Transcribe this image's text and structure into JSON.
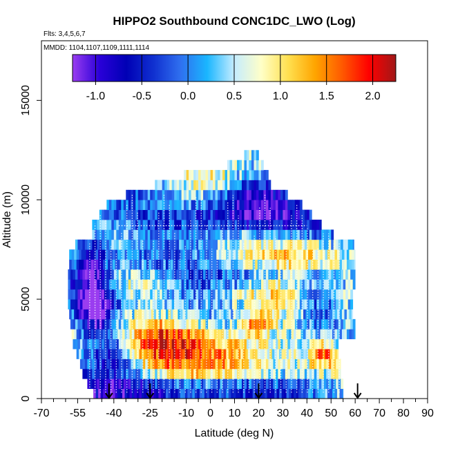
{
  "chart_data": {
    "type": "heatmap",
    "title": "HIPPO2 Southbound CONC1DC_LWO (Log)",
    "subtitle_flights": "Flts: 3,4,5,6,7",
    "subtitle_dates": "MMDD: 1104,1107,1109,1111,1114",
    "xlabel": "Latitude (deg N)",
    "ylabel": "Altitude (m)",
    "xlim": [
      -70,
      90
    ],
    "ylim": [
      0,
      18000
    ],
    "x_ticks": [
      -70,
      -55,
      -40,
      -25,
      -10,
      0,
      10,
      20,
      30,
      40,
      50,
      60,
      70,
      80,
      90
    ],
    "x_tick_labels": [
      "-70",
      "-55",
      "-40",
      "-25",
      "-10",
      "0",
      "10",
      "20",
      "30",
      "40",
      "50",
      "60",
      "70",
      "80",
      "90"
    ],
    "x_minor_ticks": [
      -65,
      -60,
      -50,
      -45,
      -35,
      -30,
      -20,
      -15,
      -5,
      5,
      15,
      25,
      35,
      45,
      55,
      65,
      75,
      85
    ],
    "y_ticks": [
      0,
      5000,
      10000,
      15000
    ],
    "y_tick_labels": [
      "0",
      "5000",
      "10000",
      "15000"
    ],
    "colorbar": {
      "min": -1.25,
      "max": 2.25,
      "ticks": [
        -1.0,
        -0.5,
        0.0,
        0.5,
        1.0,
        1.5,
        2.0
      ],
      "tick_labels": [
        "-1.0",
        "-0.5",
        "0.0",
        "0.5",
        "1.0",
        "1.5",
        "2.0"
      ],
      "colors": [
        "#9a3df0",
        "#2a00d8",
        "#0000b5",
        "#1030d0",
        "#2f6fef",
        "#1ab6ff",
        "#c4ecff",
        "#ffffc8",
        "#ffe050",
        "#ffa500",
        "#ff5a00",
        "#ff0000",
        "#a01818"
      ]
    },
    "arrow_latitudes": [
      -42,
      -25,
      20,
      61
    ],
    "dense_track_region_lat": [
      -50,
      55
    ],
    "data_envelope": [
      {
        "alt": 500,
        "lat_min": -48.5,
        "lat_max": 55
      },
      {
        "alt": 1000,
        "lat_min": -51,
        "lat_max": 55
      },
      {
        "alt": 1500,
        "lat_min": -53,
        "lat_max": 54
      },
      {
        "alt": 2000,
        "lat_min": -54,
        "lat_max": 54
      },
      {
        "alt": 2500,
        "lat_min": -55.5,
        "lat_max": 53
      },
      {
        "alt": 3000,
        "lat_min": -57,
        "lat_max": 53
      },
      {
        "alt": 3500,
        "lat_min": -57.5,
        "lat_max": 60
      },
      {
        "alt": 4000,
        "lat_min": -58,
        "lat_max": 60
      },
      {
        "alt": 4500,
        "lat_min": -58.5,
        "lat_max": 59
      },
      {
        "alt": 5000,
        "lat_min": -59,
        "lat_max": 59
      },
      {
        "alt": 5500,
        "lat_min": -59,
        "lat_max": 59
      },
      {
        "alt": 6000,
        "lat_min": -59,
        "lat_max": 60
      },
      {
        "alt": 6500,
        "lat_min": -59,
        "lat_max": 60
      },
      {
        "alt": 7000,
        "lat_min": -58.5,
        "lat_max": 60
      },
      {
        "alt": 7500,
        "lat_min": -58.5,
        "lat_max": 60
      },
      {
        "alt": 8000,
        "lat_min": -56,
        "lat_max": 59.5
      },
      {
        "alt": 8500,
        "lat_min": -49,
        "lat_max": 51
      },
      {
        "alt": 9000,
        "lat_min": -49,
        "lat_max": 46
      },
      {
        "alt": 9500,
        "lat_min": -46,
        "lat_max": 42
      },
      {
        "alt": 10000,
        "lat_min": -43,
        "lat_max": 38
      },
      {
        "alt": 10500,
        "lat_min": -35,
        "lat_max": 32
      },
      {
        "alt": 11000,
        "lat_min": -23,
        "lat_max": 25
      },
      {
        "alt": 11500,
        "lat_min": -11,
        "lat_max": 24
      },
      {
        "alt": 12000,
        "lat_min": 7,
        "lat_max": 22
      },
      {
        "alt": 12500,
        "lat_min": 14,
        "lat_max": 20
      }
    ],
    "blobs": [
      {
        "lat": -40,
        "alt": 2500,
        "sx": 9,
        "sy": 1200,
        "amp": -1.6
      },
      {
        "lat": -47,
        "alt": 4500,
        "sx": 5,
        "sy": 1000,
        "amp": -1.4
      },
      {
        "lat": -30,
        "alt": 3500,
        "sx": 15,
        "sy": 800,
        "amp": 0.7
      },
      {
        "lat": -5,
        "alt": 2600,
        "sx": 30,
        "sy": 900,
        "amp": 1.1
      },
      {
        "lat": 20,
        "alt": 3800,
        "sx": 4,
        "sy": 400,
        "amp": 1.5
      },
      {
        "lat": 47,
        "alt": 2200,
        "sx": 4,
        "sy": 400,
        "amp": 1.2
      },
      {
        "lat": 25,
        "alt": 5000,
        "sx": 20,
        "sy": 900,
        "amp": 0.6
      },
      {
        "lat": 45,
        "alt": 4800,
        "sx": 7,
        "sy": 900,
        "amp": -1.1
      },
      {
        "lat": 15,
        "alt": 6200,
        "sx": 25,
        "sy": 500,
        "amp": -1.0
      },
      {
        "lat": 40,
        "alt": 7200,
        "sx": 15,
        "sy": 600,
        "amp": 0.8
      },
      {
        "lat": -15,
        "alt": 7500,
        "sx": 20,
        "sy": 600,
        "amp": -0.6
      },
      {
        "lat": -50,
        "alt": 6500,
        "sx": 6,
        "sy": 1500,
        "amp": -1.3
      },
      {
        "lat": 0,
        "alt": 9000,
        "sx": 25,
        "sy": 500,
        "amp": -0.8
      },
      {
        "lat": 20,
        "alt": 10000,
        "sx": 10,
        "sy": 800,
        "amp": -1.0
      },
      {
        "lat": 0,
        "alt": 11000,
        "sx": 10,
        "sy": 500,
        "amp": 0.6
      },
      {
        "lat": 0,
        "alt": 500,
        "sx": 40,
        "sy": 400,
        "amp": -1.2
      },
      {
        "lat": -30,
        "alt": 5800,
        "sx": 12,
        "sy": 500,
        "amp": 0.6
      }
    ]
  }
}
